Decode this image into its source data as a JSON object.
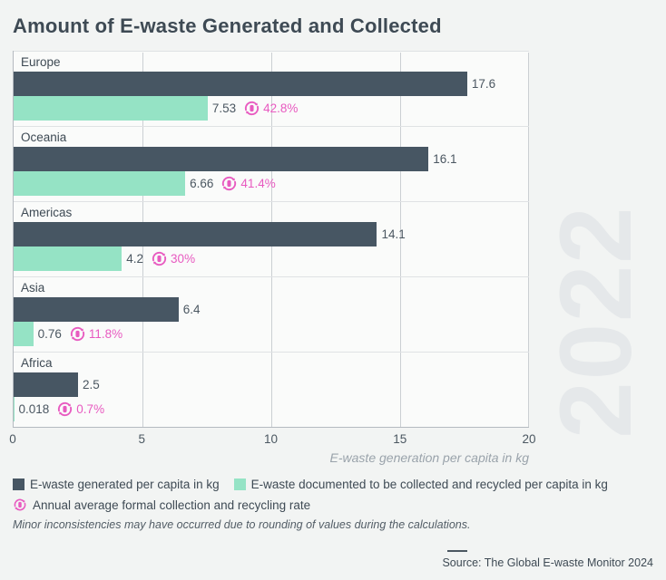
{
  "header": {
    "title": "Amount of E-waste Generated and Collected"
  },
  "watermark": "2022",
  "colors": {
    "page": "#f2f4f3",
    "plot": "#fafbfa",
    "generated": "#475663",
    "collected": "#95e3c5",
    "rate": "#e85ac0",
    "grid": "#cbcfd3",
    "axis": "#b5bac0",
    "text": "#3e4a54",
    "value": "#4b5761",
    "muted": "#9aa3ab",
    "watermark": "#e5e8ea",
    "separator": "#dfe2e4"
  },
  "chart_data": {
    "type": "bar",
    "orientation": "horizontal",
    "title": "Amount of E-waste Generated and Collected",
    "year": "2022",
    "categories": [
      "Europe",
      "Oceania",
      "Americas",
      "Asia",
      "Africa"
    ],
    "series": [
      {
        "name": "E-waste generated per capita in kg",
        "values": [
          17.6,
          16.1,
          14.1,
          6.4,
          2.5
        ],
        "value_labels": [
          "17.6",
          "16.1",
          "14.1",
          "6.4",
          "2.5"
        ]
      },
      {
        "name": "E-waste documented to be collected and recycled per capita in kg",
        "values": [
          7.53,
          6.66,
          4.2,
          0.76,
          0.018
        ],
        "value_labels": [
          "7.53",
          "6.66",
          "4.2",
          "0.76",
          "0.018"
        ]
      }
    ],
    "annotations": {
      "name": "Annual average formal collection and recycling rate",
      "labels": [
        "42.8%",
        "41.4%",
        "30%",
        "11.8%",
        "0.7%"
      ]
    },
    "xlim": [
      0,
      20
    ],
    "xticks": [
      "0",
      "5",
      "10",
      "15",
      "20"
    ],
    "xlabel": "E-waste generation per capita in kg",
    "grid": true,
    "legend_position": "bottom"
  },
  "legend": {
    "items": [
      {
        "label": "E-waste generated per capita in kg",
        "swatch": "square-generated"
      },
      {
        "label": "E-waste documented to be collected and recycled per capita in kg",
        "swatch": "square-collected"
      },
      {
        "label": "Annual average formal collection and recycling rate",
        "swatch": "recycle-icon"
      }
    ]
  },
  "footnote": "Minor inconsistencies may have occurred due to rounding of values during the calculations.",
  "source": {
    "label": "Source: The Global E-waste Monitor 2024"
  }
}
